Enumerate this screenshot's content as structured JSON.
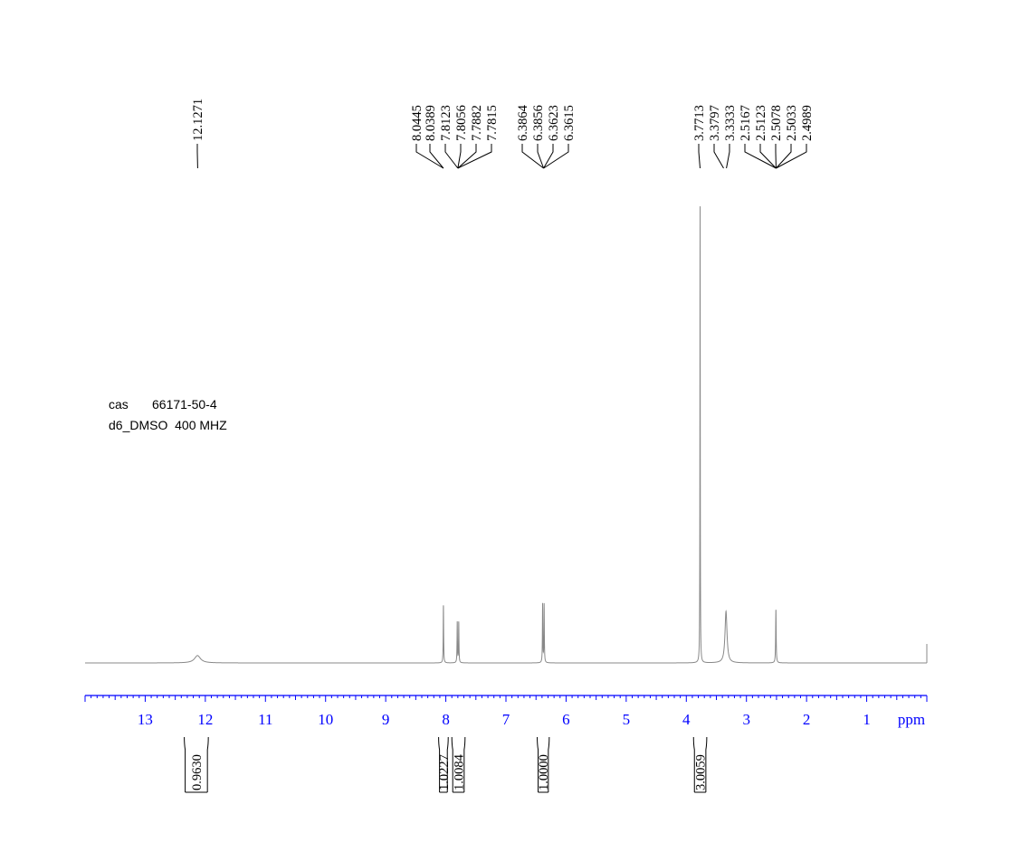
{
  "chart_data": {
    "type": "line",
    "nucleus_spectrum": "1H NMR",
    "x_unit_label": "ppm",
    "x_range": [
      14.0,
      0.0
    ],
    "x_reversed": true,
    "x_ticks": [
      "13",
      "12",
      "11",
      "10",
      "9",
      "8",
      "7",
      "6",
      "5",
      "4",
      "3",
      "2",
      "1"
    ],
    "peak_labels": [
      {
        "ppm": 12.1271,
        "label": "12.1271"
      },
      {
        "ppm": 8.0445,
        "label": "8.0445"
      },
      {
        "ppm": 8.0389,
        "label": "8.0389"
      },
      {
        "ppm": 7.8123,
        "label": "7.8123"
      },
      {
        "ppm": 7.8056,
        "label": "7.8056"
      },
      {
        "ppm": 7.7882,
        "label": "7.7882"
      },
      {
        "ppm": 7.7815,
        "label": "7.7815"
      },
      {
        "ppm": 6.3864,
        "label": "6.3864"
      },
      {
        "ppm": 6.3856,
        "label": "6.3856"
      },
      {
        "ppm": 6.3623,
        "label": "6.3623"
      },
      {
        "ppm": 6.3615,
        "label": "6.3615"
      },
      {
        "ppm": 3.7713,
        "label": "3.7713"
      },
      {
        "ppm": 3.3797,
        "label": "3.3797"
      },
      {
        "ppm": 3.3333,
        "label": "3.3333"
      },
      {
        "ppm": 2.5167,
        "label": "2.5167"
      },
      {
        "ppm": 2.5123,
        "label": "2.5123"
      },
      {
        "ppm": 2.5078,
        "label": "2.5078"
      },
      {
        "ppm": 2.5033,
        "label": "2.5033"
      },
      {
        "ppm": 2.4989,
        "label": "2.4989"
      }
    ],
    "peaks": [
      {
        "ppm": 12.13,
        "height": 0.016,
        "width": 0.06
      },
      {
        "ppm": 8.04,
        "height": 0.128,
        "width": 0.004
      },
      {
        "ppm": 7.81,
        "height": 0.089,
        "width": 0.004
      },
      {
        "ppm": 7.785,
        "height": 0.089,
        "width": 0.004
      },
      {
        "ppm": 6.39,
        "height": 0.127,
        "width": 0.004
      },
      {
        "ppm": 6.365,
        "height": 0.127,
        "width": 0.004
      },
      {
        "ppm": 3.771,
        "height": 1.0,
        "width": 0.003
      },
      {
        "ppm": 3.34,
        "height": 0.112,
        "width": 0.02
      },
      {
        "ppm": 2.51,
        "height": 0.117,
        "width": 0.005
      }
    ],
    "integrals": [
      {
        "from": 12.35,
        "to": 11.95,
        "value": "0.9630"
      },
      {
        "from": 8.12,
        "to": 7.96,
        "value": "1.0227"
      },
      {
        "from": 7.9,
        "to": 7.68,
        "value": "1.0084"
      },
      {
        "from": 6.48,
        "to": 6.28,
        "value": "1.0000"
      },
      {
        "from": 3.88,
        "to": 3.66,
        "value": "3.0059"
      }
    ]
  },
  "sample_info": {
    "cas_label": "cas",
    "cas_value": "66171-50-4",
    "solvent": "d6_DMSO",
    "frequency": "400 MHZ"
  },
  "colors": {
    "spectrum": "#888888",
    "axis": "#0000ff",
    "labels": "#000000",
    "integral": "#000000"
  }
}
